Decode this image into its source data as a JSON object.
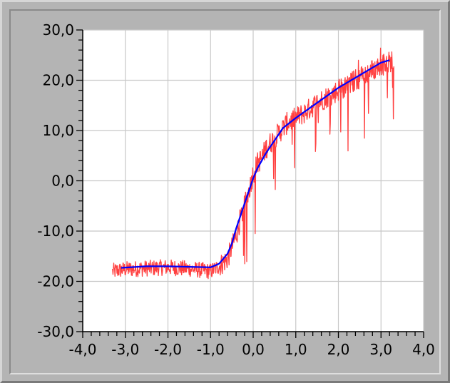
{
  "chart_data": {
    "type": "line",
    "title": "",
    "xlabel": "",
    "ylabel": "",
    "xlim": [
      -4.0,
      4.0
    ],
    "ylim": [
      -30.0,
      30.0
    ],
    "grid": true,
    "x_ticks": [
      -4.0,
      -3.0,
      -2.0,
      -1.0,
      0.0,
      1.0,
      2.0,
      3.0,
      4.0
    ],
    "x_tick_labels": [
      "-4,0",
      "-3,0",
      "-2,0",
      "-1,0",
      "0,0",
      "1,0",
      "2,0",
      "3,0",
      "4,0"
    ],
    "y_ticks": [
      30.0,
      20.0,
      10.0,
      0.0,
      -10.0,
      -20.0,
      -30.0
    ],
    "y_tick_labels": [
      "30,0",
      "20,0",
      "10,0",
      "0,0",
      "-10,0",
      "-20,0",
      "-30,0"
    ],
    "plot_background": "#ffffff",
    "grid_color": "#c8c8c8",
    "series": [
      {
        "color": "#ff4040",
        "style": "noisy",
        "x": [
          -3.3,
          -3.0,
          -2.5,
          -2.0,
          -1.5,
          -1.0,
          -0.8,
          -0.6,
          -0.4,
          -0.3,
          -0.2,
          -0.1,
          0.0,
          0.1,
          0.2,
          0.3,
          0.5,
          0.7,
          0.8,
          1.0,
          1.2,
          1.5,
          2.0,
          2.5,
          3.0,
          3.3
        ],
        "y": [
          -18.0,
          -17.6,
          -17.4,
          -17.2,
          -17.5,
          -18.0,
          -17.0,
          -15.5,
          -11.0,
          -7.5,
          -5.0,
          -2.0,
          1.5,
          3.5,
          4.5,
          6.5,
          8.5,
          10.5,
          11.5,
          12.5,
          13.5,
          15.5,
          18.0,
          20.5,
          23.0,
          24.0
        ]
      },
      {
        "color": "#0000ff",
        "style": "smooth",
        "x": [
          -3.1,
          -2.5,
          -2.0,
          -1.5,
          -1.0,
          -0.8,
          -0.6,
          -0.5,
          -0.4,
          -0.3,
          -0.2,
          -0.1,
          0.0,
          0.1,
          0.2,
          0.3,
          0.5,
          0.7,
          1.0,
          1.5,
          2.0,
          2.5,
          3.0,
          3.2
        ],
        "y": [
          -17.3,
          -17.0,
          -17.0,
          -17.1,
          -17.2,
          -16.5,
          -14.5,
          -12.5,
          -9.5,
          -7.0,
          -4.5,
          -2.0,
          0.5,
          2.5,
          4.0,
          5.5,
          8.0,
          10.5,
          12.5,
          15.5,
          18.5,
          21.0,
          23.5,
          24.0
        ]
      }
    ]
  }
}
